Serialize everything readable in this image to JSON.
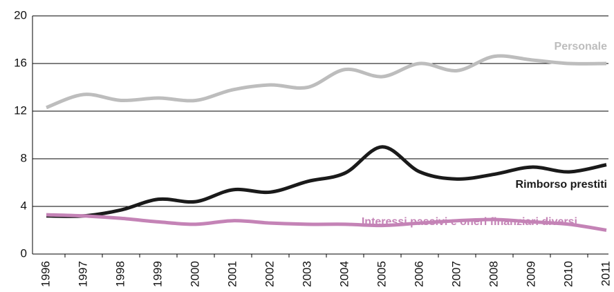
{
  "chart_data": {
    "type": "line",
    "categories": [
      "1996",
      "1997",
      "1998",
      "1999",
      "2000",
      "2001",
      "2002",
      "2003",
      "2004",
      "2005",
      "2006",
      "2007",
      "2008",
      "2009",
      "2010",
      "2011"
    ],
    "series": [
      {
        "name": "Personale",
        "color": "#bdbdbd",
        "values": [
          12.3,
          13.4,
          12.9,
          13.1,
          12.9,
          13.8,
          14.2,
          14.0,
          15.5,
          14.9,
          16.0,
          15.4,
          16.6,
          16.3,
          16.0,
          16.0
        ]
      },
      {
        "name": "Rimborso prestiti",
        "color": "#1a1a1a",
        "values": [
          3.2,
          3.2,
          3.7,
          4.6,
          4.4,
          5.4,
          5.2,
          6.1,
          6.8,
          9.0,
          6.9,
          6.3,
          6.7,
          7.3,
          6.9,
          7.5
        ]
      },
      {
        "name": "Interessi passivi e oneri finanziari diversi",
        "color": "#c483b6",
        "values": [
          3.3,
          3.2,
          3.0,
          2.7,
          2.5,
          2.8,
          2.6,
          2.5,
          2.5,
          2.4,
          2.6,
          2.8,
          2.9,
          2.7,
          2.5,
          2.0
        ]
      }
    ],
    "ylim": [
      0,
      20
    ],
    "yticks": [
      0,
      4,
      8,
      12,
      16,
      20
    ],
    "grid": true
  }
}
